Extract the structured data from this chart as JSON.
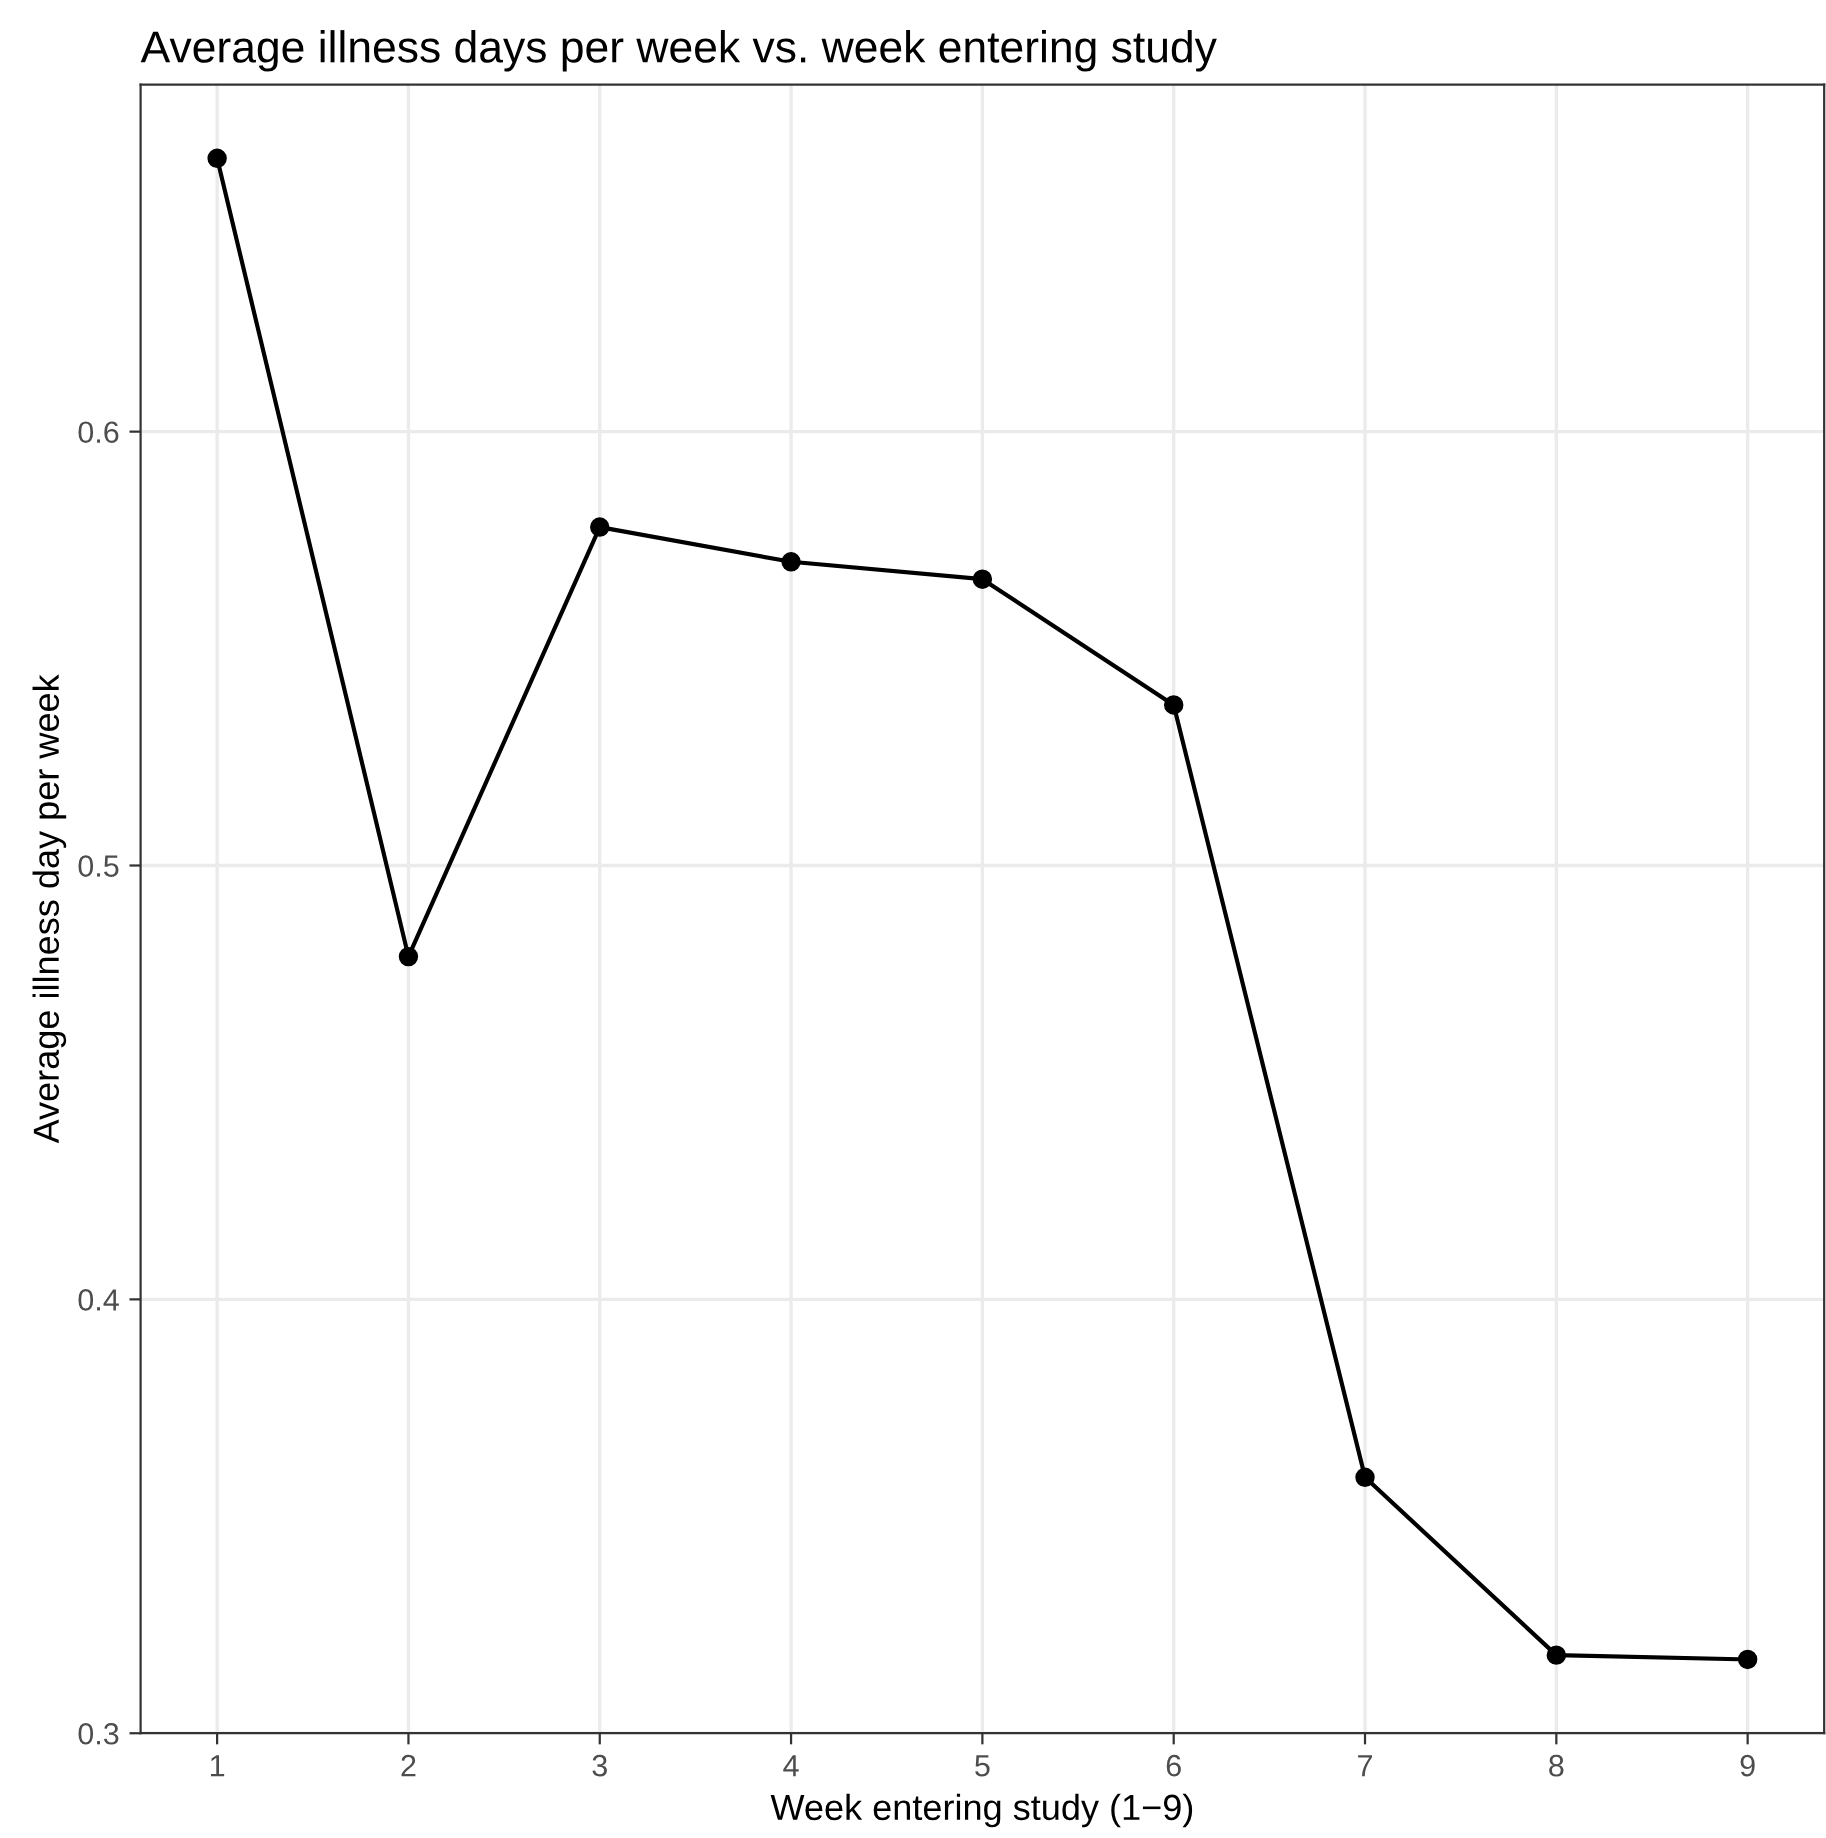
{
  "chart_data": {
    "type": "line",
    "title": "Average illness days per week vs. week entering study",
    "xlabel": "Week entering study (1−9)",
    "ylabel": "Average illness day per week",
    "x": [
      1,
      2,
      3,
      4,
      5,
      6,
      7,
      8,
      9
    ],
    "series": [
      {
        "color": "#000000",
        "values": [
          0.663,
          0.479,
          0.578,
          0.57,
          0.566,
          0.537,
          0.359,
          0.318,
          0.317
        ]
      }
    ],
    "xlim": [
      0.6,
      9.4
    ],
    "ylim": [
      0.3,
      0.68
    ],
    "xticks": [
      1,
      2,
      3,
      4,
      5,
      6,
      7,
      8,
      9
    ],
    "yticks": [
      {
        "value": 0.3,
        "label": "0.3"
      },
      {
        "value": 0.4,
        "label": "0.4"
      },
      {
        "value": 0.5,
        "label": "0.5"
      },
      {
        "value": 0.6,
        "label": "0.6"
      }
    ],
    "grid": true,
    "marker": "circle",
    "line_style": "solid"
  }
}
